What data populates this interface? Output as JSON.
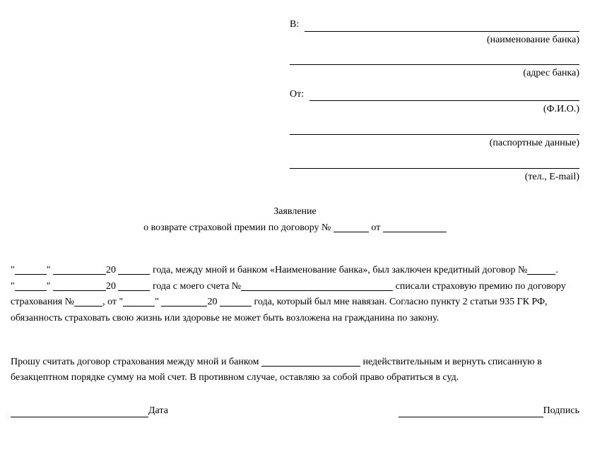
{
  "header": {
    "to_label": "В:",
    "to_hint": "(наименование банка)",
    "address_hint": "(адрес банка)",
    "from_label": "От:",
    "from_hint": "(Ф.И.О.)",
    "passport_hint": "(паспортные данные)",
    "contact_hint": "(тел., E-mail)"
  },
  "title": {
    "main": "Заявление",
    "sub_prefix": "о возврате страховой премии по договору №",
    "sub_from": "от"
  },
  "body": {
    "p1_a": "\"",
    "p1_b": "\"",
    "p1_c": "20",
    "p1_d": "года, между мной и банком «Наименование банка», был заключен кредитный договор №",
    "p1_e": ".",
    "p2_a": "\"",
    "p2_b": "\"",
    "p2_c": "20",
    "p2_d": "года с моего счета №",
    "p2_e": "списали страховую премию по договору страхования №",
    "p2_f": ", от \"",
    "p2_g": "\"",
    "p2_h": "20",
    "p2_i": "года, который был мне навязан. Согласно пункту 2 статьи 935 ГК РФ, обязанность страховать свою жизнь или здоровье не может быть возложена на гражданина по закону."
  },
  "body2": {
    "text_a": "Прошу считать договор страхования между мной и банком",
    "text_b": "недействительным и вернуть списанную в безакцептном порядке сумму на мой счет. В противном случае, оставляю за собой право обратиться в суд."
  },
  "footer": {
    "date_label": "Дата",
    "sign_label": "Подпись"
  },
  "blanks": {
    "w30": 30,
    "w40": 40,
    "w45": 45,
    "w50": 50,
    "w65": 65,
    "w75": 75,
    "w90": 90,
    "w140": 140,
    "w215": 215,
    "footer_line1": 195,
    "footer_gap": 335,
    "footer_line2": 205
  }
}
